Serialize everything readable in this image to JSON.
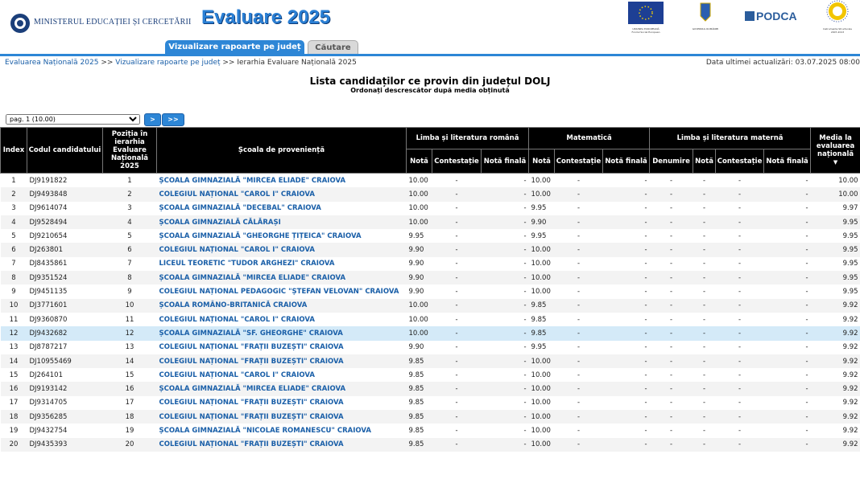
{
  "header": {
    "ministry": "MINISTERUL EDUCAȚIEI ȘI CERCETĂRII",
    "title": "Evaluare 2025",
    "tabs": [
      "Vizualizare rapoarte pe județ",
      "Căutare"
    ],
    "logos": [
      "UNIUNEA EUROPEANĂ",
      "Fondul Social European",
      "GUVERNUL ROMÂNIEI",
      "PODCA",
      "Instrumente Structurale 2007-2013"
    ]
  },
  "breadcrumb": {
    "items": [
      "Evaluarea Națională 2025",
      "Vizualizare rapoarte pe județ",
      "Ierarhia Evaluare Națională 2025"
    ],
    "separator": ">>"
  },
  "last_update": "Data ultimei actualizări: 03.07.2025 08:00",
  "page": {
    "title": "Lista candidaților ce provin din județul DOLJ",
    "subtitle": "Ordonați descrescător după media obținută"
  },
  "pager": {
    "select": "pag. 1 (10.00)",
    "buttons": [
      ">",
      ">>"
    ]
  },
  "table": {
    "header_top": [
      "Index",
      "Codul candidatului",
      "Poziția în ierarhia Evaluare Națională 2025",
      "Școala de proveniență",
      "Limba și literatura română",
      "Matematică",
      "Limba și literatura maternă",
      "Media la evaluarea națională"
    ],
    "header_sub": [
      "Notă",
      "Contestație",
      "Notă finală",
      "Notă",
      "Contestație",
      "Notă finală",
      "Denumire",
      "Notă",
      "Contestație",
      "Notă finală"
    ],
    "rows": [
      [
        "1",
        "DJ9191822",
        "1",
        "ȘCOALA GIMNAZIALĂ \"MIRCEA ELIADE\" CRAIOVA",
        "10.00",
        "-",
        "-",
        "10.00",
        "-",
        "-",
        "-",
        "-",
        "-",
        "-",
        "10.00"
      ],
      [
        "2",
        "DJ9493848",
        "2",
        "COLEGIUL NAȚIONAL \"CAROL I\" CRAIOVA",
        "10.00",
        "-",
        "-",
        "10.00",
        "-",
        "-",
        "-",
        "-",
        "-",
        "-",
        "10.00"
      ],
      [
        "3",
        "DJ9614074",
        "3",
        "ȘCOALA GIMNAZIALĂ \"DECEBAL\" CRAIOVA",
        "10.00",
        "-",
        "-",
        "9.95",
        "-",
        "-",
        "-",
        "-",
        "-",
        "-",
        "9.97"
      ],
      [
        "4",
        "DJ9528494",
        "4",
        "ȘCOALA GIMNAZIALĂ CĂLĂRAȘI",
        "10.00",
        "-",
        "-",
        "9.90",
        "-",
        "-",
        "-",
        "-",
        "-",
        "-",
        "9.95"
      ],
      [
        "5",
        "DJ9210654",
        "5",
        "ȘCOALA GIMNAZIALĂ \"GHEORGHE ȚIȚEICA\" CRAIOVA",
        "9.95",
        "-",
        "-",
        "9.95",
        "-",
        "-",
        "-",
        "-",
        "-",
        "-",
        "9.95"
      ],
      [
        "6",
        "DJ263801",
        "6",
        "COLEGIUL NAȚIONAL \"CAROL I\" CRAIOVA",
        "9.90",
        "-",
        "-",
        "10.00",
        "-",
        "-",
        "-",
        "-",
        "-",
        "-",
        "9.95"
      ],
      [
        "7",
        "DJ8435861",
        "7",
        "LICEUL TEORETIC \"TUDOR ARGHEZI\" CRAIOVA",
        "9.90",
        "-",
        "-",
        "10.00",
        "-",
        "-",
        "-",
        "-",
        "-",
        "-",
        "9.95"
      ],
      [
        "8",
        "DJ9351524",
        "8",
        "ȘCOALA GIMNAZIALĂ \"MIRCEA ELIADE\" CRAIOVA",
        "9.90",
        "-",
        "-",
        "10.00",
        "-",
        "-",
        "-",
        "-",
        "-",
        "-",
        "9.95"
      ],
      [
        "9",
        "DJ9451135",
        "9",
        "COLEGIUL NAȚIONAL PEDAGOGIC \"ȘTEFAN VELOVAN\" CRAIOVA",
        "9.90",
        "-",
        "-",
        "10.00",
        "-",
        "-",
        "-",
        "-",
        "-",
        "-",
        "9.95"
      ],
      [
        "10",
        "DJ3771601",
        "10",
        "ȘCOALA ROMÂNO-BRITANICĂ CRAIOVA",
        "10.00",
        "-",
        "-",
        "9.85",
        "-",
        "-",
        "-",
        "-",
        "-",
        "-",
        "9.92"
      ],
      [
        "11",
        "DJ9360870",
        "11",
        "COLEGIUL NAȚIONAL \"CAROL I\" CRAIOVA",
        "10.00",
        "-",
        "-",
        "9.85",
        "-",
        "-",
        "-",
        "-",
        "-",
        "-",
        "9.92"
      ],
      [
        "12",
        "DJ9432682",
        "12",
        "ȘCOALA GIMNAZIALĂ \"SF. GHEORGHE\" CRAIOVA",
        "10.00",
        "-",
        "-",
        "9.85",
        "-",
        "-",
        "-",
        "-",
        "-",
        "-",
        "9.92"
      ],
      [
        "13",
        "DJ8787217",
        "13",
        "COLEGIUL NAȚIONAL \"FRAȚII BUZEȘTI\" CRAIOVA",
        "9.90",
        "-",
        "-",
        "9.95",
        "-",
        "-",
        "-",
        "-",
        "-",
        "-",
        "9.92"
      ],
      [
        "14",
        "DJ10955469",
        "14",
        "COLEGIUL NAȚIONAL \"FRAȚII BUZEȘTI\" CRAIOVA",
        "9.85",
        "-",
        "-",
        "10.00",
        "-",
        "-",
        "-",
        "-",
        "-",
        "-",
        "9.92"
      ],
      [
        "15",
        "DJ264101",
        "15",
        "COLEGIUL NAȚIONAL \"CAROL I\" CRAIOVA",
        "9.85",
        "-",
        "-",
        "10.00",
        "-",
        "-",
        "-",
        "-",
        "-",
        "-",
        "9.92"
      ],
      [
        "16",
        "DJ9193142",
        "16",
        "ȘCOALA GIMNAZIALĂ \"MIRCEA ELIADE\" CRAIOVA",
        "9.85",
        "-",
        "-",
        "10.00",
        "-",
        "-",
        "-",
        "-",
        "-",
        "-",
        "9.92"
      ],
      [
        "17",
        "DJ9314705",
        "17",
        "COLEGIUL NAȚIONAL \"FRAȚII BUZEȘTI\" CRAIOVA",
        "9.85",
        "-",
        "-",
        "10.00",
        "-",
        "-",
        "-",
        "-",
        "-",
        "-",
        "9.92"
      ],
      [
        "18",
        "DJ9356285",
        "18",
        "COLEGIUL NAȚIONAL \"FRAȚII BUZEȘTI\" CRAIOVA",
        "9.85",
        "-",
        "-",
        "10.00",
        "-",
        "-",
        "-",
        "-",
        "-",
        "-",
        "9.92"
      ],
      [
        "19",
        "DJ9432754",
        "19",
        "ȘCOALA GIMNAZIALĂ \"NICOLAE ROMANESCU\" CRAIOVA",
        "9.85",
        "-",
        "-",
        "10.00",
        "-",
        "-",
        "-",
        "-",
        "-",
        "-",
        "9.92"
      ],
      [
        "20",
        "DJ9435393",
        "20",
        "COLEGIUL NAȚIONAL \"FRAȚII BUZEȘTI\" CRAIOVA",
        "9.85",
        "-",
        "-",
        "10.00",
        "-",
        "-",
        "-",
        "-",
        "-",
        "-",
        "9.92"
      ]
    ]
  }
}
